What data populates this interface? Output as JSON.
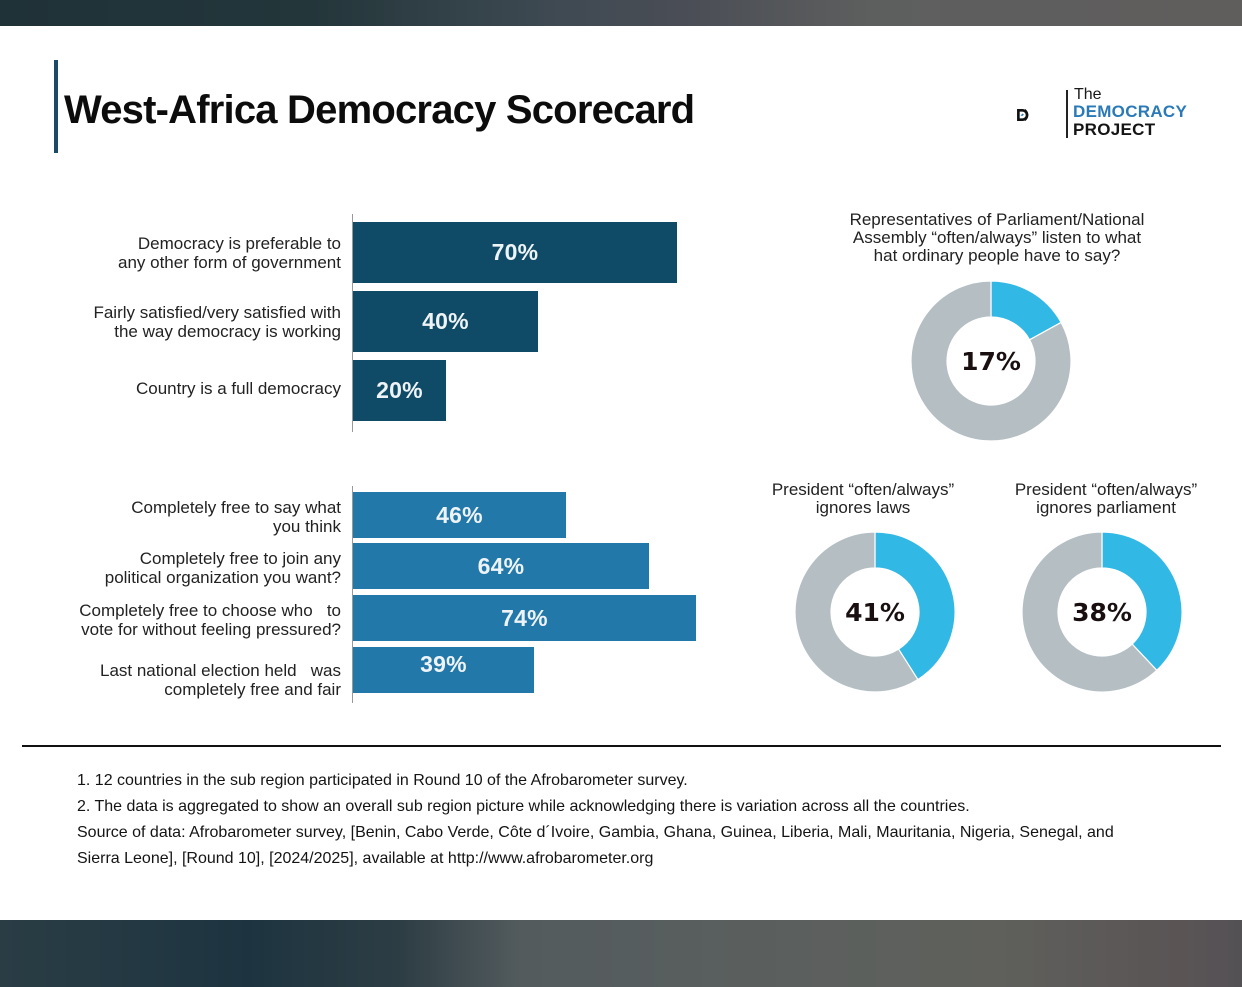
{
  "header": {
    "title": "West-Africa Democracy Scorecard",
    "logo": {
      "line1": "The",
      "line2": "DEMOCRACY",
      "line3": "PROJECT",
      "icon": "dp-monogram-icon"
    }
  },
  "colors": {
    "bar_top": "#0f4a66",
    "bar_bottom": "#2378aa",
    "donut_highlight": "#31b8e4",
    "donut_rest": "#b4bec3",
    "title_accent": "#1c4a66",
    "logo_blue": "#2a7ab8"
  },
  "chart_data": [
    {
      "type": "bar",
      "orientation": "horizontal",
      "categories": [
        "Democracy is preferable to any other form of government",
        "Fairly satisfied/very satisfied with the way democracy is working",
        "Country is a full democracy"
      ],
      "category_lines": [
        [
          "Democracy is preferable to",
          "any other form of government"
        ],
        [
          "Fairly satisfied/very satisfied with",
          "the way democracy is working"
        ],
        [
          "Country is a full democracy"
        ]
      ],
      "values": [
        70,
        40,
        20
      ],
      "labels": [
        "70%",
        "40%",
        "20%"
      ],
      "xlim": [
        0,
        100
      ],
      "unit": "%"
    },
    {
      "type": "bar",
      "orientation": "horizontal",
      "categories": [
        "Completely free to say what you think",
        "Completely free to join any political organization you want?",
        "Completely free to choose who to vote for without feeling pressured?",
        "Last national election held was completely free and fair"
      ],
      "category_lines": [
        [
          "Completely free to say what",
          "you think"
        ],
        [
          "Completely free to join any",
          "political organization you want?"
        ],
        [
          "Completely free to choose who   to",
          "vote for without feeling pressured?"
        ],
        [
          "Last national election held   was",
          "completely free and fair"
        ]
      ],
      "values": [
        46,
        64,
        74,
        39
      ],
      "labels": [
        "46%",
        "64%",
        "74%",
        "39%"
      ],
      "xlim": [
        0,
        100
      ],
      "unit": "%"
    },
    {
      "type": "pie",
      "variant": "donut",
      "title_lines": [
        "Representatives of Parliament/National",
        "Assembly “often/always” listen to what",
        "hat ordinary people have to say?"
      ],
      "values": [
        17,
        83
      ],
      "label": "17%"
    },
    {
      "type": "pie",
      "variant": "donut",
      "title_lines": [
        "President “often/always”",
        "ignores laws"
      ],
      "values": [
        41,
        59
      ],
      "label": "41%"
    },
    {
      "type": "pie",
      "variant": "donut",
      "title_lines": [
        "President “often/always”",
        "ignores parliament"
      ],
      "values": [
        38,
        62
      ],
      "label": "38%"
    }
  ],
  "notes": [
    "1. 12 countries in the sub region participated in Round 10 of the Afrobarometer survey.",
    "2. The data is aggregated to show an overall sub region picture while acknowledging there is variation across all the countries.",
    "Source of data: Afrobarometer survey, [Benin, Cabo Verde, Côte d´Ivoire, Gambia, Ghana, Guinea, Liberia, Mali, Mauritania, Nigeria, Senegal, and",
    "Sierra Leone], [Round 10], [2024/2025], available at http://www.afrobarometer.org"
  ]
}
